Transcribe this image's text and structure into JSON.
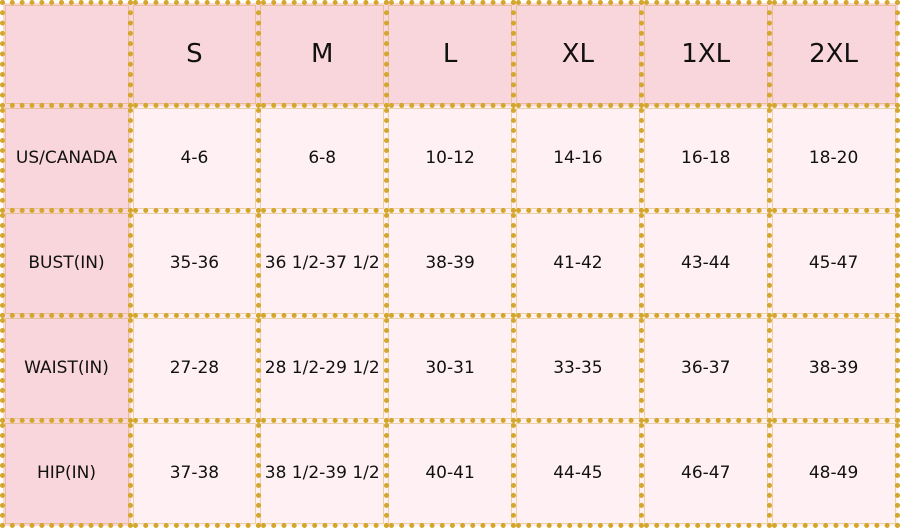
{
  "header": {
    "corner": "",
    "sizes": [
      "S",
      "M",
      "L",
      "XL",
      "1XL",
      "2XL"
    ]
  },
  "rows": [
    {
      "label": "US/CANADA",
      "values": [
        "4-6",
        "6-8",
        "10-12",
        "14-16",
        "16-18",
        "18-20"
      ]
    },
    {
      "label": "BUST(IN)",
      "values": [
        "35-36",
        "36 1/2-37 1/2",
        "38-39",
        "41-42",
        "43-44",
        "45-47"
      ]
    },
    {
      "label": "WAIST(IN)",
      "values": [
        "27-28",
        "28 1/2-29 1/2",
        "30-31",
        "33-35",
        "36-37",
        "38-39"
      ]
    },
    {
      "label": "HIP(IN)",
      "values": [
        "37-38",
        "38 1/2-39 1/2",
        "40-41",
        "44-45",
        "46-47",
        "48-49"
      ]
    }
  ],
  "colors": {
    "header_bg": "#f9d6db",
    "cell_bg": "#fff1f3",
    "border_gold": "#d4a72c"
  }
}
